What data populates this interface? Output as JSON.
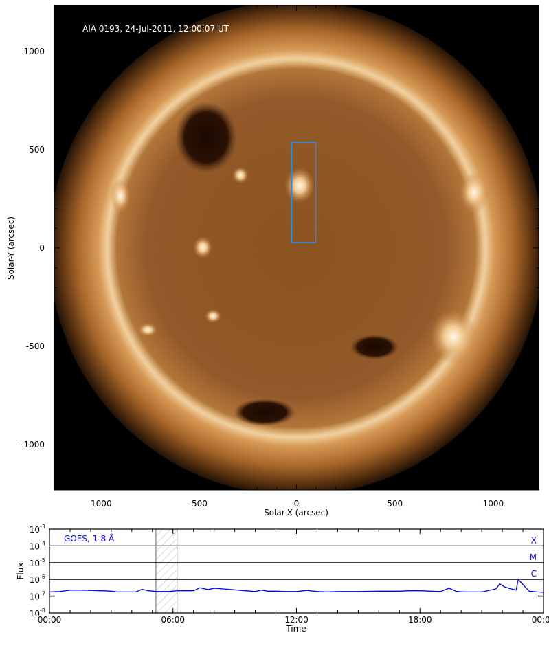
{
  "chart_data": [
    {
      "type": "image",
      "title": "AIA 0193, 24-Jul-2011, 12:00:07 UT",
      "xlabel": "Solar-X (arcsec)",
      "ylabel": "Solar-Y (arcsec)",
      "xlim": [
        -1231,
        1231
      ],
      "ylim": [
        -1231,
        1234
      ],
      "xticks": [
        "-1000",
        "-500",
        "0",
        "500",
        "1000"
      ],
      "yticks": [
        "1000",
        "500",
        "0",
        "-500",
        "-1000"
      ],
      "xtick_values": [
        -1000,
        -500,
        0,
        500,
        1000
      ],
      "ytick_values": [
        1000,
        500,
        0,
        -500,
        -1000
      ],
      "solar_radius_arcsec": 950,
      "box": {
        "x": [
          -24,
          98
        ],
        "y": [
          28,
          538
        ],
        "color": "#2a8cf0"
      },
      "colormap": "sdoaia193"
    },
    {
      "type": "line",
      "label": "GOES, 1-8 Å",
      "xlabel": "Time",
      "ylabel": "Flux",
      "xlim": [
        0,
        24
      ],
      "ylim": [
        1e-08,
        0.001
      ],
      "log_y": true,
      "xticks": [
        "00:00",
        "06:00",
        "12:00",
        "18:00",
        "00:00"
      ],
      "xtick_values": [
        0,
        6,
        12,
        18,
        24
      ],
      "yticks": [
        {
          "base": "10",
          "exp": "-3",
          "value": 0.001
        },
        {
          "base": "10",
          "exp": "-4",
          "value": 0.0001
        },
        {
          "base": "10",
          "exp": "-5",
          "value": 1e-05
        },
        {
          "base": "10",
          "exp": "-6",
          "value": 1e-06
        },
        {
          "base": "10",
          "exp": "-7",
          "value": 1e-07
        },
        {
          "base": "10",
          "exp": "-8",
          "value": 1e-08
        }
      ],
      "class_lines": [
        {
          "label": "X",
          "value": 0.0001
        },
        {
          "label": "M",
          "value": 1e-05
        },
        {
          "label": "C",
          "value": 1e-06
        }
      ],
      "highlight_interval": [
        5.17,
        6.2
      ],
      "series_color": "#0000ff",
      "x": [
        0,
        0.5,
        1,
        1.5,
        2,
        2.5,
        3,
        3.3,
        3.8,
        4.2,
        4.5,
        4.8,
        5.2,
        5.8,
        6.2,
        6.6,
        7.0,
        7.3,
        7.7,
        8.0,
        8.5,
        9.0,
        9.5,
        10.0,
        10.3,
        10.6,
        11.0,
        11.5,
        12.0,
        12.5,
        13.0,
        13.5,
        14.0,
        15.0,
        16.0,
        17.0,
        17.5,
        18.0,
        18.5,
        19.0,
        19.4,
        19.8,
        20.2,
        21.0,
        21.5,
        21.7,
        21.87,
        22.1,
        22.4,
        22.67,
        22.77,
        23.0,
        23.3,
        23.7,
        24.0
      ],
      "y": [
        1.8e-07,
        1.9e-07,
        2.3e-07,
        2.3e-07,
        2.2e-07,
        2.1e-07,
        2e-07,
        1.8e-07,
        1.8e-07,
        1.8e-07,
        2.6e-07,
        2.1e-07,
        1.9e-07,
        1.9e-07,
        2.1e-07,
        2.1e-07,
        2.1e-07,
        3.2e-07,
        2.5e-07,
        3e-07,
        2.7e-07,
        2.4e-07,
        2.1e-07,
        1.9e-07,
        2.3e-07,
        2e-07,
        2e-07,
        1.9e-07,
        1.9e-07,
        2.2e-07,
        1.9e-07,
        1.8e-07,
        1.9e-07,
        1.9e-07,
        2e-07,
        2e-07,
        2.1e-07,
        2.1e-07,
        2e-07,
        1.9e-07,
        3e-07,
        1.9e-07,
        1.8e-07,
        1.8e-07,
        2.4e-07,
        2.8e-07,
        5.5e-07,
        3.6e-07,
        2.8e-07,
        2.3e-07,
        1e-06,
        5e-07,
        2e-07,
        1.8e-07,
        1.7e-07
      ]
    }
  ]
}
